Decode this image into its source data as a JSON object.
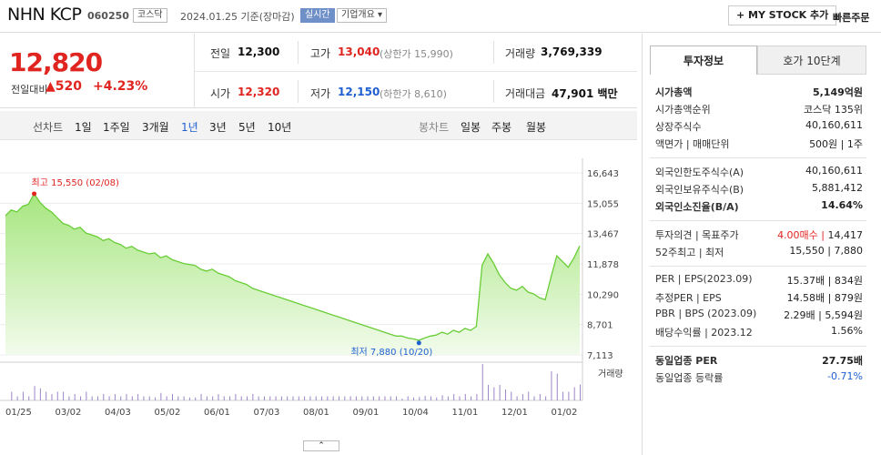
{
  "header": {
    "name": "NHN KCP",
    "code": "060250",
    "market": "코스닥",
    "date": "2024.01.25 기준(장마감)",
    "realtime": "실시간",
    "company_overview": "기업개요",
    "my_stock": "+ MY STOCK 추가",
    "quick_order": "빠른주문"
  },
  "price": {
    "current": "12,820",
    "change_label": "전일대비",
    "change": "520",
    "change_pct": "+4.23%"
  },
  "quotes": {
    "prev_label": "전일",
    "prev": "12,300",
    "high_label": "고가",
    "high": "13,040",
    "upper_limit": "(상한가 15,990)",
    "volume_label": "거래량",
    "volume": "3,769,339",
    "open_label": "시가",
    "open": "12,320",
    "low_label": "저가",
    "low": "12,150",
    "lower_limit": "(하한가 8,610)",
    "amount_label": "거래대금",
    "amount": "47,901",
    "amount_unit": "백만"
  },
  "periods": {
    "line_label": "선차트",
    "items": [
      "1일",
      "1주일",
      "3개월",
      "1년",
      "3년",
      "5년",
      "10년"
    ],
    "selected": "1년",
    "candle_label": "봉차트",
    "candle_items": [
      "일봉",
      "주봉",
      "월봉"
    ]
  },
  "chart_data": {
    "type": "area",
    "title": "",
    "y_ticks": [
      "16,643",
      "15,055",
      "13,467",
      "11,878",
      "10,290",
      "8,701",
      "7,113"
    ],
    "x_ticks": [
      "01/25",
      "03/02",
      "04/03",
      "05/02",
      "06/01",
      "07/03",
      "08/01",
      "09/01",
      "10/04",
      "11/01",
      "12/01",
      "01/02"
    ],
    "high_annotation": "최고 15,550 (02/08)",
    "low_annotation": "최저 7,880 (10/20)",
    "volume_label": "거래량",
    "ylim": [
      7113,
      16643
    ],
    "series": [
      {
        "values": [
          14400,
          14700,
          14600,
          14900,
          15000,
          15550,
          15100,
          14800,
          14600,
          14300,
          14000,
          13900,
          13700,
          13800,
          13500,
          13400,
          13300,
          13100,
          13200,
          13000,
          12900,
          12700,
          12800,
          12600,
          12500,
          12400,
          12450,
          12200,
          12300,
          12100,
          12000,
          11900,
          11850,
          11800,
          11600,
          11500,
          11600,
          11400,
          11300,
          11200,
          11000,
          10900,
          10800,
          10600,
          10500,
          10400,
          10300,
          10200,
          10100,
          10000,
          9900,
          9800,
          9700,
          9600,
          9500,
          9400,
          9300,
          9200,
          9100,
          9000,
          8900,
          8800,
          8700,
          8600,
          8500,
          8400,
          8300,
          8200,
          8100,
          8100,
          8000,
          7950,
          7880,
          8000,
          8100,
          8150,
          8300,
          8200,
          8400,
          8300,
          8500,
          8400,
          8600,
          11800,
          12400,
          11900,
          11300,
          10900,
          10600,
          10500,
          10700,
          10400,
          10300,
          10100,
          10000,
          11200,
          12300,
          12000,
          11700,
          12200,
          12820
        ]
      }
    ]
  },
  "info": {
    "tabs": [
      "투자정보",
      "호가 10단계"
    ],
    "rows1": [
      {
        "k": "시가총액",
        "v": "5,149억원",
        "bold": true
      },
      {
        "k": "시가총액순위",
        "v": "코스닥 135위"
      },
      {
        "k": "상장주식수",
        "v": "40,160,611"
      },
      {
        "k": "액면가 | 매매단위",
        "v": "500원 | 1주"
      }
    ],
    "rows2": [
      {
        "k": "외국인한도주식수(A)",
        "v": "40,160,611"
      },
      {
        "k": "외국인보유주식수(B)",
        "v": "5,881,412"
      },
      {
        "k": "외국인소진율(B/A)",
        "v": "14.64%",
        "bold": true
      }
    ],
    "rows3": [
      {
        "k": "투자의견 | 목표주가",
        "v_red": "4.00매수",
        "v": "14,417"
      },
      {
        "k": "52주최고 | 최저",
        "v": "15,550 | 7,880"
      }
    ],
    "rows4": [
      {
        "k": "PER | EPS(2023.09)",
        "v": "15.37배 | 834원"
      },
      {
        "k": "추정PER | EPS",
        "v": "14.58배 | 879원"
      },
      {
        "k": "PBR | BPS (2023.09)",
        "v": "2.29배 | 5,594원"
      },
      {
        "k": "배당수익률 | 2023.12",
        "v": "1.56%"
      }
    ],
    "rows5": [
      {
        "k": "동일업종 PER",
        "v": "27.75배",
        "bold": true
      },
      {
        "k": "동일업종 등락률",
        "v": "-0.71%",
        "blue": true
      }
    ]
  },
  "colors": {
    "up": "#e0241f",
    "down": "#1f5fd0",
    "area": "#b8ee9a",
    "line": "#6fd13d"
  }
}
